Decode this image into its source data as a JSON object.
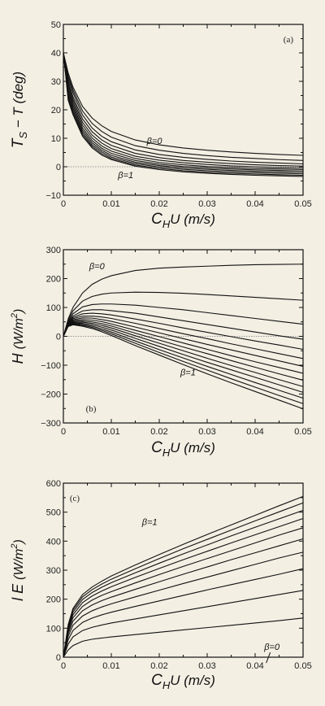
{
  "chart_data": [
    {
      "type": "line",
      "panel_tag": "(a)",
      "ylabel": "T_S − T (deg)",
      "ylabel_parts": {
        "main": "T",
        "sub": "S",
        "rest": " − T (deg)"
      },
      "xlabel": "C_H U (m/s)",
      "xlabel_parts": {
        "c": "C",
        "sub": "H",
        "rest": "U (m/s)"
      },
      "xlim": [
        0,
        0.05
      ],
      "ylim": [
        -10,
        50
      ],
      "xticks": [
        0,
        0.01,
        0.02,
        0.03,
        0.04,
        0.05
      ],
      "xtick_labels": [
        "0",
        "0.01",
        "0.02",
        "0.03",
        "0.04",
        "0.05"
      ],
      "yticks": [
        -10,
        0,
        10,
        20,
        30,
        40,
        50
      ],
      "ytick_labels": [
        "−10",
        "0",
        "10",
        "20",
        "30",
        "40",
        "50"
      ],
      "zero_line": true,
      "annotations": [
        {
          "text": "β=0",
          "x": 0.019,
          "y": 8
        },
        {
          "text": "β=1",
          "x": 0.013,
          "y": -4
        }
      ],
      "x": [
        0,
        0.001,
        0.002,
        0.004,
        0.006,
        0.008,
        0.01,
        0.015,
        0.02,
        0.025,
        0.03,
        0.035,
        0.04,
        0.045,
        0.05
      ],
      "series": [
        {
          "values": [
            40,
            33,
            28,
            21.2,
            17.1,
            14.4,
            12.4,
            9.4,
            7.7,
            6.6,
            5.8,
            5.2,
            4.7,
            4.3,
            4.0
          ]
        },
        {
          "values": [
            40,
            32,
            27,
            19.6,
            15.2,
            12.4,
            10.4,
            7.4,
            5.8,
            4.7,
            3.9,
            3.3,
            2.9,
            2.5,
            2.2
          ]
        },
        {
          "values": [
            40,
            31,
            26,
            18.2,
            13.6,
            10.7,
            8.8,
            5.9,
            4.3,
            3.3,
            2.6,
            2.0,
            1.6,
            1.3,
            1.0
          ]
        },
        {
          "values": [
            40,
            30,
            24.6,
            16.8,
            12.3,
            9.4,
            7.5,
            4.7,
            3.2,
            2.2,
            1.6,
            1.1,
            0.7,
            0.4,
            0.2
          ]
        },
        {
          "values": [
            40,
            29,
            23.6,
            15.6,
            11.1,
            8.3,
            6.4,
            3.7,
            2.3,
            1.4,
            0.8,
            0.3,
            0,
            -0.3,
            -0.5
          ]
        },
        {
          "values": [
            40,
            28,
            22.6,
            14.6,
            10.1,
            7.3,
            5.5,
            2.9,
            1.5,
            0.7,
            0.1,
            -0.3,
            -0.6,
            -0.8,
            -1.0
          ]
        },
        {
          "values": [
            40,
            27,
            21.6,
            13.6,
            9.2,
            6.5,
            4.7,
            2.2,
            0.9,
            0.1,
            -0.4,
            -0.8,
            -1.1,
            -1.3,
            -1.5
          ]
        },
        {
          "values": [
            40,
            26,
            20.7,
            12.8,
            8.4,
            5.8,
            4.0,
            1.6,
            0.4,
            -0.4,
            -0.9,
            -1.3,
            -1.6,
            -1.8,
            -2.0
          ]
        },
        {
          "values": [
            40,
            25,
            19.8,
            12.0,
            7.7,
            5.2,
            3.4,
            1.1,
            -0.1,
            -0.9,
            -1.4,
            -1.8,
            -2.1,
            -2.3,
            -2.5
          ]
        },
        {
          "values": [
            40,
            24.2,
            19.0,
            11.3,
            7.1,
            4.6,
            2.9,
            0.6,
            -0.6,
            -1.4,
            -1.9,
            -2.3,
            -2.6,
            -2.8,
            -3.0
          ]
        },
        {
          "values": [
            40,
            23.4,
            18.3,
            10.7,
            6.6,
            4.1,
            2.5,
            0.2,
            -1.0,
            -1.8,
            -2.3,
            -2.7,
            -3.0,
            -3.2,
            -3.4
          ]
        }
      ]
    },
    {
      "type": "line",
      "panel_tag": "(b)",
      "ylabel": "H (W/m²)",
      "ylabel_parts": {
        "main": "H ",
        "rest": "(W/m",
        "sup": "2",
        "close": ")"
      },
      "xlabel": "C_H U (m/s)",
      "xlabel_parts": {
        "c": "C",
        "sub": "H",
        "rest": "U (m/s)"
      },
      "xlim": [
        0,
        0.05
      ],
      "ylim": [
        -300,
        300
      ],
      "xticks": [
        0,
        0.01,
        0.02,
        0.03,
        0.04,
        0.05
      ],
      "xtick_labels": [
        "0",
        "0.01",
        "0.02",
        "0.03",
        "0.04",
        "0.05"
      ],
      "yticks": [
        -300,
        -200,
        -100,
        0,
        100,
        200,
        300
      ],
      "ytick_labels": [
        "−300",
        "−200",
        "−100",
        "0",
        "100",
        "200",
        "300"
      ],
      "zero_line": true,
      "annotations": [
        {
          "text": "β=0",
          "x": 0.007,
          "y": 232
        },
        {
          "text": "β=1",
          "x": 0.026,
          "y": -135
        }
      ],
      "x": [
        0,
        0.001,
        0.002,
        0.004,
        0.006,
        0.008,
        0.01,
        0.015,
        0.02,
        0.025,
        0.03,
        0.035,
        0.04,
        0.045,
        0.05
      ],
      "series": [
        {
          "values": [
            0,
            60,
            100,
            150,
            180,
            198,
            210,
            228,
            236,
            240,
            243,
            246,
            248,
            249,
            250
          ]
        },
        {
          "values": [
            0,
            55,
            88,
            122,
            138,
            146,
            150,
            153,
            152,
            149,
            145,
            140,
            135,
            130,
            125
          ]
        },
        {
          "values": [
            0,
            50,
            78,
            102,
            110,
            112,
            112,
            108,
            100,
            92,
            82,
            72,
            62,
            52,
            42
          ]
        },
        {
          "values": [
            0,
            47,
            70,
            88,
            92,
            92,
            89,
            80,
            67,
            54,
            41,
            28,
            15,
            2,
            -10
          ]
        },
        {
          "values": [
            0,
            45,
            65,
            78,
            80,
            78,
            74,
            60,
            45,
            29,
            14,
            -1,
            -16,
            -30,
            -45
          ]
        },
        {
          "values": [
            0,
            43,
            61,
            70,
            70,
            67,
            62,
            45,
            27,
            9,
            -8,
            -26,
            -43,
            -60,
            -77
          ]
        },
        {
          "values": [
            0,
            41,
            57,
            64,
            63,
            58,
            52,
            32,
            12,
            -8,
            -28,
            -47,
            -66,
            -85,
            -104
          ]
        },
        {
          "values": [
            0,
            40,
            54,
            58,
            56,
            51,
            43,
            21,
            -1,
            -23,
            -45,
            -67,
            -88,
            -108,
            -128
          ]
        },
        {
          "values": [
            0,
            39,
            51,
            53,
            50,
            44,
            36,
            11,
            -13,
            -37,
            -60,
            -84,
            -107,
            -130,
            -152
          ]
        },
        {
          "values": [
            0,
            38,
            48,
            49,
            45,
            38,
            29,
            2,
            -24,
            -50,
            -76,
            -101,
            -125,
            -150,
            -174
          ]
        },
        {
          "values": [
            0,
            37,
            46,
            45,
            40,
            32,
            22,
            -7,
            -35,
            -63,
            -90,
            -116,
            -142,
            -168,
            -194
          ]
        },
        {
          "values": [
            0,
            36,
            44,
            41,
            35,
            26,
            15,
            -16,
            -46,
            -75,
            -104,
            -132,
            -160,
            -187,
            -214
          ]
        },
        {
          "values": [
            0,
            35,
            42,
            38,
            31,
            21,
            9,
            -24,
            -56,
            -87,
            -117,
            -147,
            -176,
            -205,
            -233
          ]
        },
        {
          "values": [
            0,
            34,
            40,
            35,
            27,
            16,
            3,
            -32,
            -65,
            -98,
            -130,
            -161,
            -191,
            -221,
            -251
          ]
        }
      ]
    },
    {
      "type": "line",
      "panel_tag": "(c)",
      "ylabel": "l E (W/m²)",
      "ylabel_parts": {
        "main": "l E ",
        "rest": "(W/m",
        "sup": "2",
        "close": ")"
      },
      "xlabel": "C_H U (m/s)",
      "xlabel_parts": {
        "c": "C",
        "sub": "H",
        "rest": "U (m/s)"
      },
      "xlim": [
        0,
        0.05
      ],
      "ylim": [
        0,
        600
      ],
      "xticks": [
        0,
        0.01,
        0.02,
        0.03,
        0.04,
        0.05
      ],
      "xtick_labels": [
        "0",
        "0.01",
        "0.02",
        "0.03",
        "0.04",
        "0.05"
      ],
      "yticks": [
        0,
        100,
        200,
        300,
        400,
        500,
        600
      ],
      "ytick_labels": [
        "0",
        "100",
        "200",
        "300",
        "400",
        "500",
        "600"
      ],
      "zero_line": false,
      "annotations": [
        {
          "text": "β=1",
          "x": 0.018,
          "y": 455
        },
        {
          "text": "β=0",
          "x": 0.0435,
          "y": 25
        }
      ],
      "x": [
        0,
        0.001,
        0.002,
        0.004,
        0.006,
        0.008,
        0.01,
        0.015,
        0.02,
        0.025,
        0.03,
        0.035,
        0.04,
        0.045,
        0.05
      ],
      "series": [
        {
          "values": [
            0,
            25,
            40,
            55,
            62,
            66,
            70,
            78,
            86,
            94,
            102,
            110,
            118,
            126,
            135
          ]
        },
        {
          "values": [
            0,
            45,
            70,
            92,
            103,
            111,
            118,
            132,
            146,
            160,
            174,
            188,
            202,
            216,
            230
          ]
        },
        {
          "values": [
            0,
            60,
            92,
            120,
            135,
            146,
            155,
            175,
            194,
            213,
            232,
            250,
            268,
            286,
            305
          ]
        },
        {
          "values": [
            0,
            72,
            110,
            142,
            160,
            173,
            184,
            208,
            231,
            254,
            276,
            298,
            320,
            342,
            362
          ]
        },
        {
          "values": [
            0,
            82,
            124,
            160,
            180,
            195,
            207,
            234,
            260,
            286,
            311,
            336,
            360,
            384,
            408
          ]
        },
        {
          "values": [
            0,
            90,
            136,
            175,
            197,
            213,
            226,
            256,
            285,
            313,
            340,
            367,
            394,
            421,
            446
          ]
        },
        {
          "values": [
            0,
            97,
            146,
            188,
            211,
            228,
            243,
            275,
            306,
            336,
            365,
            394,
            422,
            450,
            478
          ]
        },
        {
          "values": [
            0,
            103,
            155,
            199,
            223,
            241,
            257,
            291,
            324,
            356,
            387,
            418,
            448,
            477,
            506
          ]
        },
        {
          "values": [
            0,
            108,
            162,
            208,
            233,
            252,
            269,
            305,
            340,
            374,
            406,
            438,
            470,
            501,
            532
          ]
        },
        {
          "values": [
            0,
            112,
            168,
            216,
            242,
            262,
            280,
            318,
            354,
            389,
            423,
            456,
            489,
            522,
            554
          ]
        }
      ]
    }
  ]
}
